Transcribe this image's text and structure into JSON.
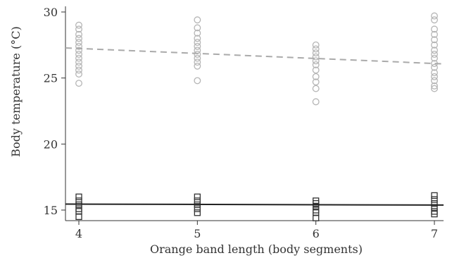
{
  "chart_data": {
    "type": "scatter",
    "xlabel": "Orange band length (body segments)",
    "ylabel": "Body temperature (°C)",
    "xlim": [
      4,
      7
    ],
    "ylim": [
      14.5,
      30
    ],
    "x_ticks": [
      4,
      5,
      6,
      7
    ],
    "y_ticks": [
      15,
      20,
      25,
      30
    ],
    "grid": false,
    "legend": "none",
    "series": [
      {
        "marker": "circle",
        "color": "#b5b5b5",
        "points": [
          [
            4,
            29.0
          ],
          [
            4,
            28.7
          ],
          [
            4,
            28.3
          ],
          [
            4,
            28.0
          ],
          [
            4,
            27.7
          ],
          [
            4,
            27.4
          ],
          [
            4,
            27.1
          ],
          [
            4,
            26.8
          ],
          [
            4,
            26.5
          ],
          [
            4,
            26.2
          ],
          [
            4,
            25.9
          ],
          [
            4,
            25.6
          ],
          [
            4,
            25.3
          ],
          [
            4,
            24.6
          ],
          [
            5,
            29.4
          ],
          [
            5,
            28.8
          ],
          [
            5,
            28.4
          ],
          [
            5,
            28.0
          ],
          [
            5,
            27.7
          ],
          [
            5,
            27.4
          ],
          [
            5,
            27.1
          ],
          [
            5,
            26.8
          ],
          [
            5,
            26.5
          ],
          [
            5,
            26.2
          ],
          [
            5,
            25.9
          ],
          [
            5,
            24.8
          ],
          [
            6,
            27.5
          ],
          [
            6,
            27.2
          ],
          [
            6,
            26.9
          ],
          [
            6,
            26.6
          ],
          [
            6,
            26.3
          ],
          [
            6,
            26.0
          ],
          [
            6,
            25.6
          ],
          [
            6,
            25.1
          ],
          [
            6,
            24.7
          ],
          [
            6,
            24.2
          ],
          [
            6,
            23.2
          ],
          [
            7,
            29.7
          ],
          [
            7,
            29.4
          ],
          [
            7,
            28.7
          ],
          [
            7,
            28.3
          ],
          [
            7,
            27.9
          ],
          [
            7,
            27.5
          ],
          [
            7,
            27.1
          ],
          [
            7,
            26.8
          ],
          [
            7,
            26.5
          ],
          [
            7,
            26.1
          ],
          [
            7,
            25.8
          ],
          [
            7,
            25.4
          ],
          [
            7,
            25.1
          ],
          [
            7,
            24.8
          ],
          [
            7,
            24.4
          ],
          [
            7,
            24.2
          ]
        ],
        "trend": {
          "x": [
            4,
            7
          ],
          "y": [
            27.2,
            26.1
          ],
          "style": "dashed",
          "color": "#aaaaaa"
        }
      },
      {
        "marker": "square",
        "color": "#333333",
        "points": [
          [
            4,
            16.0
          ],
          [
            4,
            15.7
          ],
          [
            4,
            15.4
          ],
          [
            4,
            15.1
          ],
          [
            4,
            14.9
          ],
          [
            4,
            14.5
          ],
          [
            5,
            16.0
          ],
          [
            5,
            15.7
          ],
          [
            5,
            15.4
          ],
          [
            5,
            15.1
          ],
          [
            5,
            14.8
          ],
          [
            6,
            15.7
          ],
          [
            6,
            15.5
          ],
          [
            6,
            15.3
          ],
          [
            6,
            15.0
          ],
          [
            6,
            14.8
          ],
          [
            6,
            14.4
          ],
          [
            7,
            16.1
          ],
          [
            7,
            15.8
          ],
          [
            7,
            15.5
          ],
          [
            7,
            15.2
          ],
          [
            7,
            14.9
          ],
          [
            7,
            14.7
          ]
        ],
        "trend": {
          "x": [
            4,
            7
          ],
          "y": [
            15.45,
            15.38
          ],
          "style": "solid",
          "color": "#222222"
        }
      }
    ]
  }
}
